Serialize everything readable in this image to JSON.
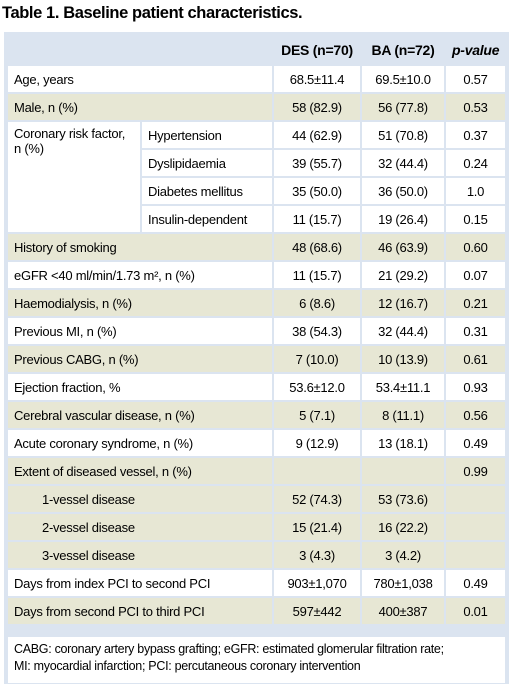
{
  "title": "Table 1. Baseline patient characteristics.",
  "headers": [
    "",
    "DES (n=70)",
    "BA (n=72)",
    "p-value"
  ],
  "rows": [
    {
      "label": "Age, years",
      "des": "68.5±11.4",
      "ba": "69.5±10.0",
      "p": "0.57",
      "shade": "w"
    },
    {
      "label": "Male, n (%)",
      "des": "58 (82.9)",
      "ba": "56 (77.8)",
      "p": "0.53",
      "shade": "t"
    }
  ],
  "risk": {
    "label_line1": "Coronary risk factor,",
    "label_line2": "n (%)",
    "items": [
      {
        "label": "Hypertension",
        "des": "44 (62.9)",
        "ba": "51 (70.8)",
        "p": "0.37"
      },
      {
        "label": "Dyslipidaemia",
        "des": "39 (55.7)",
        "ba": "32 (44.4)",
        "p": "0.24"
      },
      {
        "label": "Diabetes mellitus",
        "des": "35 (50.0)",
        "ba": "36 (50.0)",
        "p": "1.0"
      },
      {
        "label": "Insulin-dependent",
        "des": "11 (15.7)",
        "ba": "19 (26.4)",
        "p": "0.15"
      }
    ]
  },
  "rows2": [
    {
      "label": "History of smoking",
      "des": "48 (68.6)",
      "ba": "46 (63.9)",
      "p": "0.60",
      "shade": "t"
    },
    {
      "label": "eGFR <40 ml/min/1.73 m², n (%)",
      "des": "11 (15.7)",
      "ba": "21 (29.2)",
      "p": "0.07",
      "shade": "w"
    },
    {
      "label": "Haemodialysis, n (%)",
      "des": "6 (8.6)",
      "ba": "12 (16.7)",
      "p": "0.21",
      "shade": "t"
    },
    {
      "label": "Previous MI, n (%)",
      "des": "38 (54.3)",
      "ba": "32 (44.4)",
      "p": "0.31",
      "shade": "w"
    },
    {
      "label": "Previous CABG, n (%)",
      "des": "7 (10.0)",
      "ba": "10 (13.9)",
      "p": "0.61",
      "shade": "t"
    },
    {
      "label": "Ejection fraction, %",
      "des": "53.6±12.0",
      "ba": "53.4±11.1",
      "p": "0.93",
      "shade": "w"
    },
    {
      "label": "Cerebral vascular disease, n (%)",
      "des": "5 (7.1)",
      "ba": "8 (11.1)",
      "p": "0.56",
      "shade": "t"
    },
    {
      "label": "Acute coronary syndrome, n (%)",
      "des": "9 (12.9)",
      "ba": "13 (18.1)",
      "p": "0.49",
      "shade": "w"
    },
    {
      "label": "Extent of diseased vessel, n (%)",
      "des": "",
      "ba": "",
      "p": "0.99",
      "shade": "t"
    },
    {
      "label": "1-vessel disease",
      "des": "52 (74.3)",
      "ba": "53 (73.6)",
      "p": "",
      "shade": "t",
      "indent": true
    },
    {
      "label": "2-vessel disease",
      "des": "15 (21.4)",
      "ba": "16 (22.2)",
      "p": "",
      "shade": "t",
      "indent": true
    },
    {
      "label": "3-vessel disease",
      "des": "3 (4.3)",
      "ba": "3 (4.2)",
      "p": "",
      "shade": "t",
      "indent": true
    },
    {
      "label": "Days from index PCI to second PCI",
      "des": "903±1,070",
      "ba": "780±1,038",
      "p": "0.49",
      "shade": "w"
    },
    {
      "label": "Days from second PCI to third PCI",
      "des": "597±442",
      "ba": "400±387",
      "p": "0.01",
      "shade": "t"
    }
  ],
  "footnote": [
    "CABG: coronary artery bypass grafting; eGFR: estimated glomerular filtration rate;",
    "MI: myocardial infarction; PCI: percutaneous coronary intervention"
  ]
}
